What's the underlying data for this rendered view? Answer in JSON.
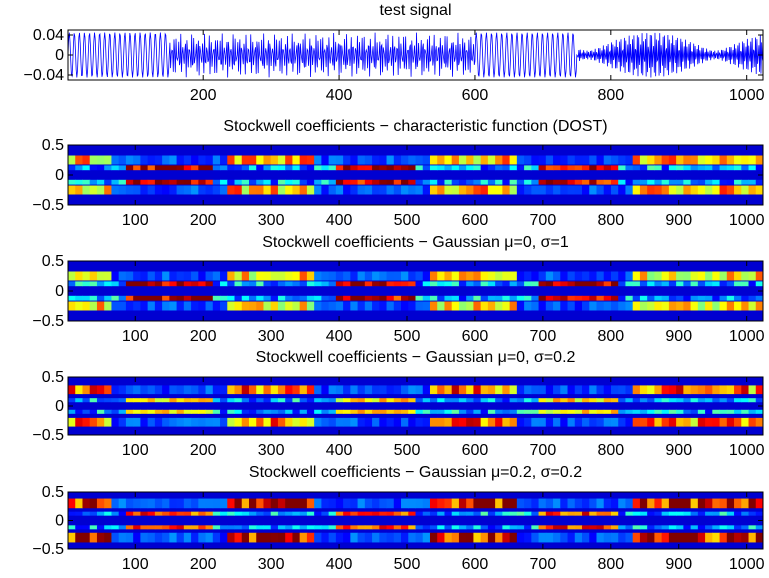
{
  "chart_data": [
    {
      "type": "line",
      "title": "test signal",
      "xlim": [
        1,
        1024
      ],
      "ylim": [
        -0.05,
        0.05
      ],
      "xticks": [
        200,
        400,
        600,
        800,
        1000
      ],
      "yticks": [
        0.04,
        0,
        -0.04
      ],
      "ytick_labels": [
        "0.04",
        "0",
        "−0.04"
      ],
      "line_color": "#0000ff",
      "segments": [
        {
          "x_start": 1,
          "x_end": 150,
          "amplitude": 0.045,
          "cycles": 20
        },
        {
          "x_start": 150,
          "x_end": 600,
          "amplitude": 0.045,
          "cycles": 140,
          "mixed": true
        },
        {
          "x_start": 600,
          "x_end": 750,
          "amplitude": 0.045,
          "cycles": 20
        },
        {
          "x_start": 750,
          "x_end": 1024,
          "amplitude": 0.045,
          "cycles": 115,
          "mixed": true
        }
      ]
    },
    {
      "type": "heatmap",
      "title": "Stockwell coefficients − characteristic function (DOST)",
      "xlim": [
        1,
        1024
      ],
      "ylim": [
        -0.5,
        0.5
      ],
      "xticks": [
        100,
        200,
        300,
        400,
        500,
        600,
        700,
        800,
        900,
        1000
      ],
      "yticks": [
        0.5,
        0,
        -0.5
      ],
      "ytick_labels": [
        "0.5",
        "0",
        "−0.5"
      ],
      "colormap": "jet",
      "rows": [
        {
          "y": 0.25,
          "height": 0.15,
          "pattern": "bright_blocks",
          "intensity": 0.55
        },
        {
          "y": 0.12,
          "height": 0.08,
          "pattern": "low_band",
          "intensity": 0.85
        },
        {
          "y": -0.12,
          "height": 0.08,
          "pattern": "low_band",
          "intensity": 0.85
        },
        {
          "y": -0.25,
          "height": 0.15,
          "pattern": "bright_blocks",
          "intensity": 0.55
        }
      ]
    },
    {
      "type": "heatmap",
      "title": "Stockwell coefficients − Gaussian μ=0, σ=1",
      "xlim": [
        1,
        1024
      ],
      "ylim": [
        -0.5,
        0.5
      ],
      "xticks": [
        100,
        200,
        300,
        400,
        500,
        600,
        700,
        800,
        900,
        1000
      ],
      "yticks": [
        0.5,
        0,
        -0.5
      ],
      "ytick_labels": [
        "0.5",
        "0",
        "−0.5"
      ],
      "colormap": "jet",
      "rows": [
        {
          "y": 0.25,
          "height": 0.15,
          "pattern": "bright_blocks",
          "intensity": 0.5
        },
        {
          "y": 0.12,
          "height": 0.08,
          "pattern": "low_band",
          "intensity": 0.85
        },
        {
          "y": -0.12,
          "height": 0.08,
          "pattern": "low_band",
          "intensity": 0.85
        },
        {
          "y": -0.25,
          "height": 0.15,
          "pattern": "bright_blocks",
          "intensity": 0.5
        }
      ]
    },
    {
      "type": "heatmap",
      "title": "Stockwell coefficients − Gaussian μ=0, σ=0.2",
      "xlim": [
        1,
        1024
      ],
      "ylim": [
        -0.5,
        0.5
      ],
      "xticks": [
        100,
        200,
        300,
        400,
        500,
        600,
        700,
        800,
        900,
        1000
      ],
      "yticks": [
        0.5,
        0,
        -0.5
      ],
      "ytick_labels": [
        "0.5",
        "0",
        "−0.5"
      ],
      "colormap": "jet",
      "rows": [
        {
          "y": 0.28,
          "height": 0.15,
          "pattern": "bright_blocks",
          "intensity": 0.65
        },
        {
          "y": 0.1,
          "height": 0.07,
          "pattern": "low_band",
          "intensity": 0.5
        },
        {
          "y": -0.1,
          "height": 0.07,
          "pattern": "low_band",
          "intensity": 0.5
        },
        {
          "y": -0.28,
          "height": 0.15,
          "pattern": "bright_blocks",
          "intensity": 0.65
        }
      ]
    },
    {
      "type": "heatmap",
      "title": "Stockwell coefficients − Gaussian μ=0.2, σ=0.2",
      "xlim": [
        1,
        1024
      ],
      "ylim": [
        -0.5,
        0.5
      ],
      "xticks": [
        100,
        200,
        300,
        400,
        500,
        600,
        700,
        800,
        900,
        1000
      ],
      "yticks": [
        0.5,
        0,
        -0.5
      ],
      "ytick_labels": [
        "0.5",
        "0",
        "−0.5"
      ],
      "colormap": "jet",
      "rows": [
        {
          "y": 0.3,
          "height": 0.17,
          "pattern": "bright_blocks",
          "intensity": 0.9
        },
        {
          "y": 0.12,
          "height": 0.07,
          "pattern": "low_band",
          "intensity": 0.7
        },
        {
          "y": -0.12,
          "height": 0.07,
          "pattern": "low_band",
          "intensity": 0.7
        },
        {
          "y": -0.3,
          "height": 0.17,
          "pattern": "bright_blocks",
          "intensity": 0.9
        }
      ]
    }
  ]
}
